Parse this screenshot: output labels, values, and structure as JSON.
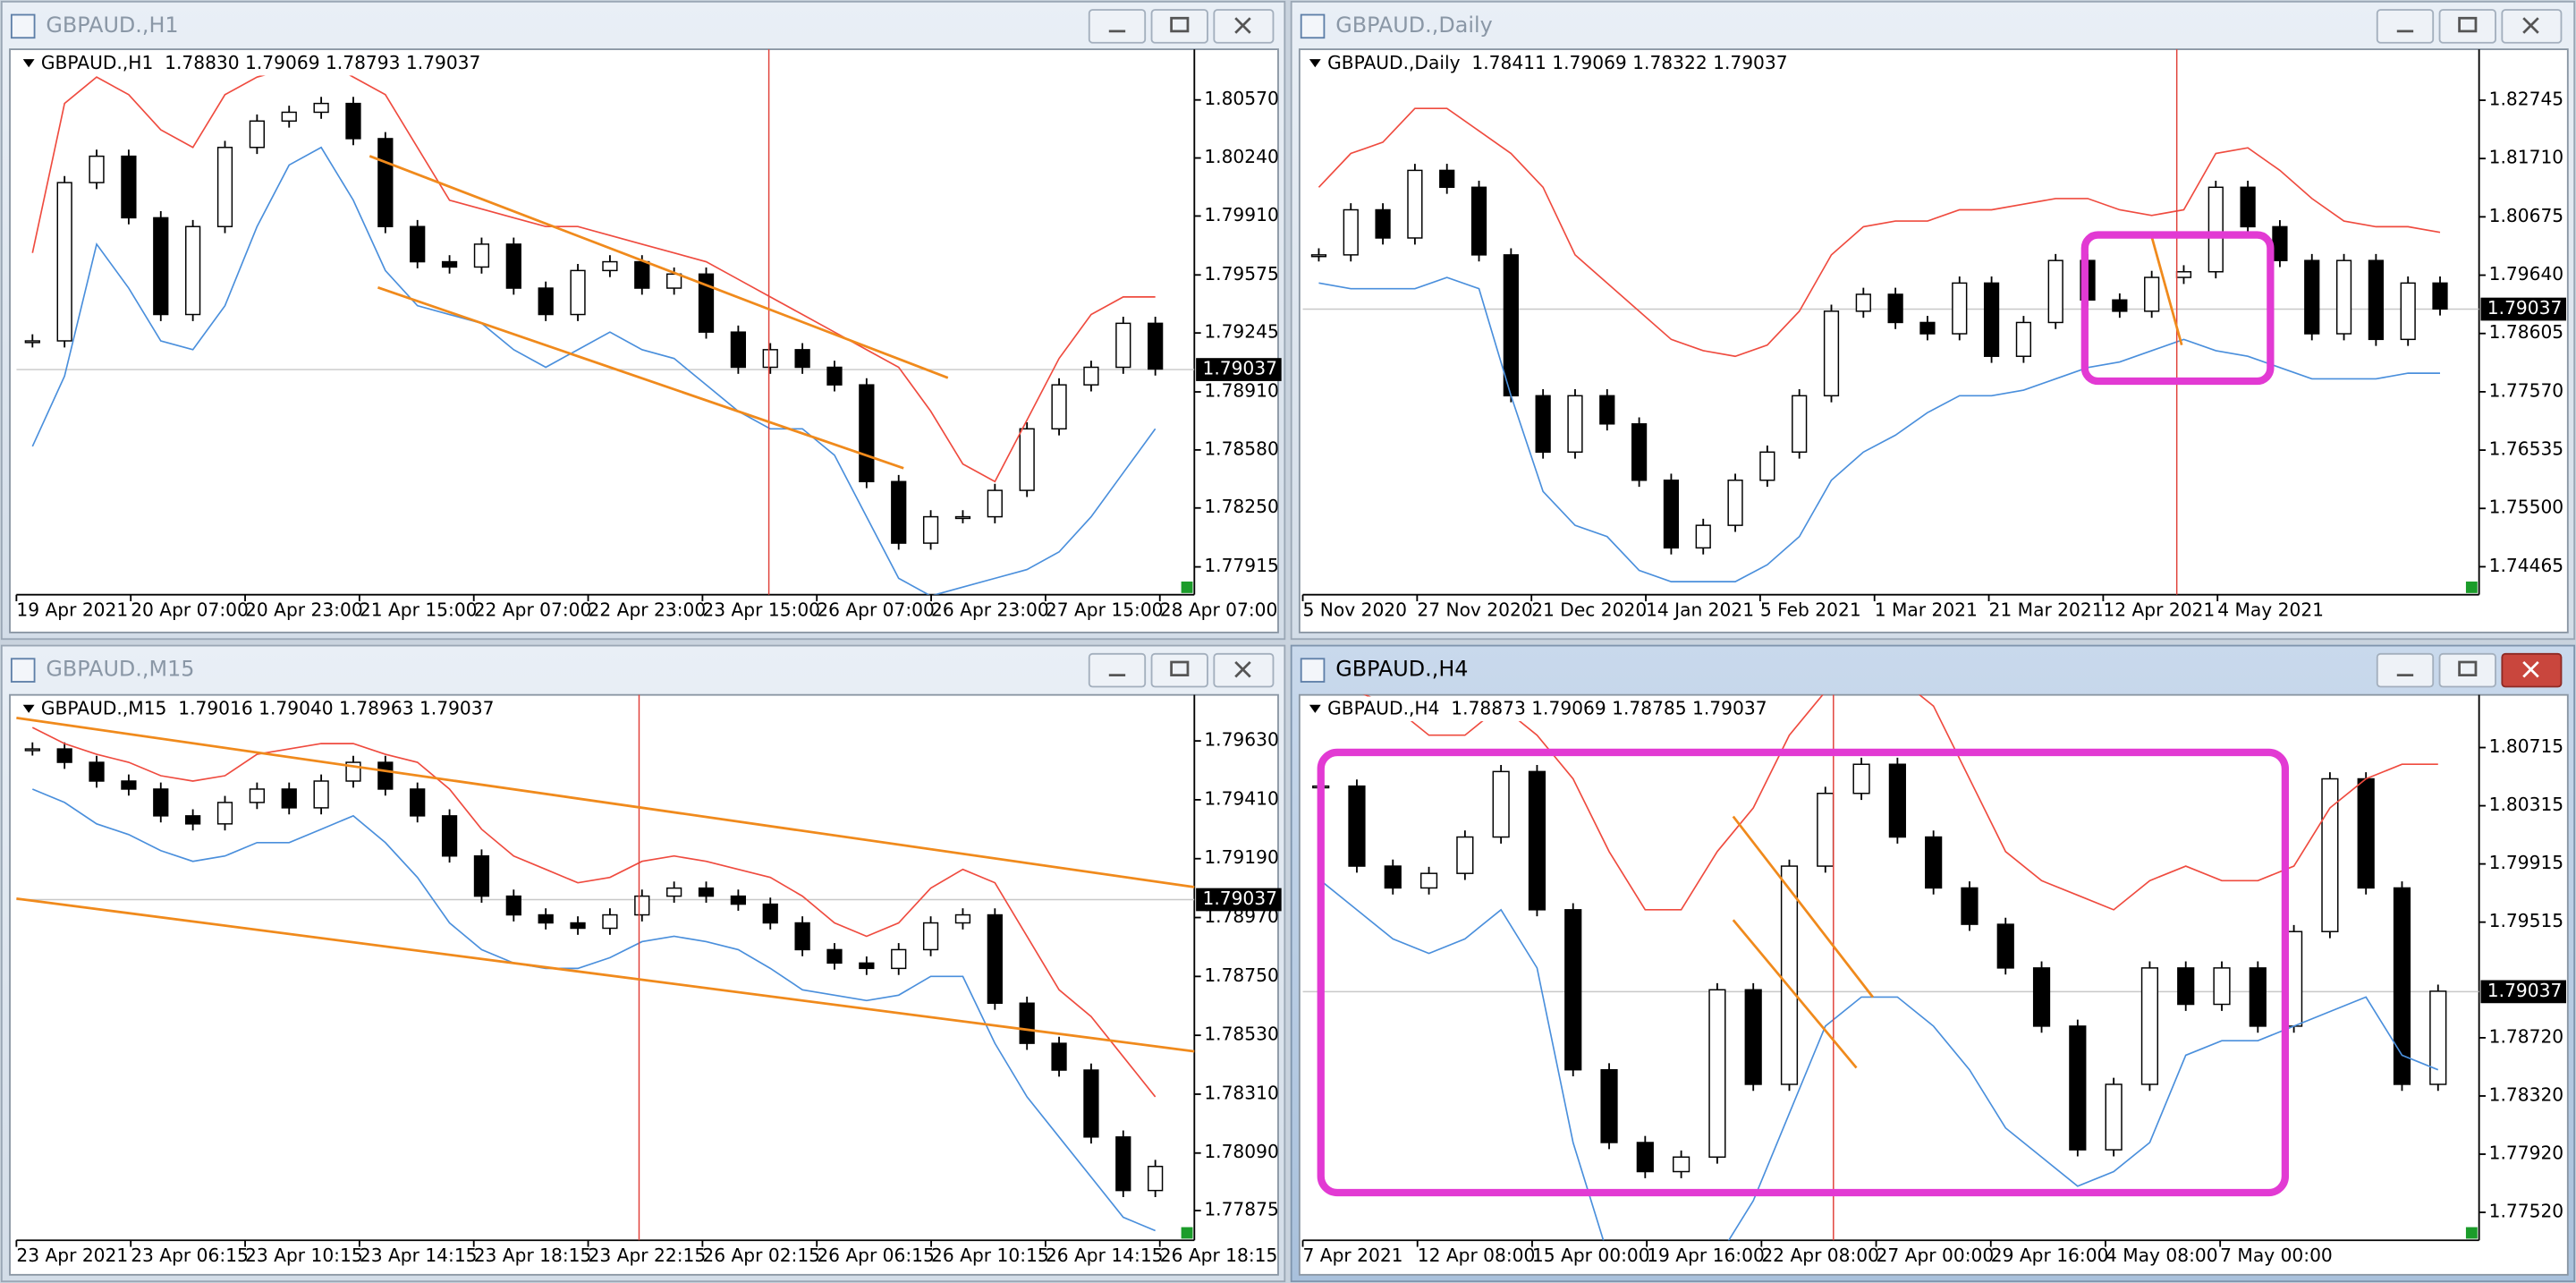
{
  "windows": [
    {
      "title": "GBPAUD.,H1",
      "header": "GBPAUD.,H1  1.78830 1.79069 1.78793 1.79037",
      "chart_data": {
        "type": "candlestick",
        "ylim": [
          1.77757,
          1.80858
        ],
        "yticks": [
          {
            "value": 1.8057,
            "label": "1.80570"
          },
          {
            "value": 1.8024,
            "label": "1.80240"
          },
          {
            "value": 1.7991,
            "label": "1.79910"
          },
          1.79575,
          1.79245,
          {
            "value": 1.7891,
            "label": "1.78910"
          },
          {
            "value": 1.7858,
            "label": "1.78580"
          },
          {
            "value": 1.7825,
            "label": "1.78250"
          },
          1.77915
        ],
        "x_labels": [
          "19 Apr 2021",
          "20 Apr 07:00",
          "20 Apr 23:00",
          "21 Apr 15:00",
          "22 Apr 07:00",
          "22 Apr 23:00",
          "23 Apr 15:00",
          "26 Apr 07:00",
          "26 Apr 23:00",
          "27 Apr 15:00",
          "28 Apr 07:00"
        ],
        "current_price": 1.79037,
        "close": [
          1.792,
          1.801,
          1.8025,
          1.799,
          1.7935,
          1.7985,
          1.803,
          1.8045,
          1.805,
          1.8055,
          1.8035,
          1.7985,
          1.7965,
          1.7962,
          1.7975,
          1.795,
          1.7935,
          1.796,
          1.7965,
          1.795,
          1.7958,
          1.7925,
          1.7905,
          1.7915,
          1.7905,
          1.7895,
          1.784,
          1.7805,
          1.782,
          1.782,
          1.7835,
          1.787,
          1.7895,
          1.7905,
          1.793,
          1.7904
        ],
        "upper": [
          1.797,
          1.8055,
          1.807,
          1.806,
          1.804,
          1.803,
          1.806,
          1.807,
          1.8075,
          1.808,
          1.807,
          1.806,
          1.803,
          1.8,
          1.7995,
          1.799,
          1.7985,
          1.7985,
          1.798,
          1.7975,
          1.797,
          1.7965,
          1.7955,
          1.7945,
          1.7935,
          1.7925,
          1.7915,
          1.7905,
          1.788,
          1.785,
          1.784,
          1.7875,
          1.791,
          1.7935,
          1.7945,
          1.7945
        ],
        "lower": [
          1.786,
          1.79,
          1.7975,
          1.795,
          1.792,
          1.7915,
          1.794,
          1.7985,
          1.802,
          1.803,
          1.8,
          1.796,
          1.794,
          1.7935,
          1.793,
          1.7915,
          1.7905,
          1.7915,
          1.7925,
          1.7915,
          1.791,
          1.7895,
          1.788,
          1.787,
          1.787,
          1.7855,
          1.782,
          1.7785,
          1.7775,
          1.778,
          1.7785,
          1.779,
          1.78,
          1.782,
          1.7845,
          1.787
        ]
      }
    },
    {
      "title": "GBPAUD.,Daily",
      "header": "GBPAUD.,Daily  1.78411 1.79069 1.78322 1.79037",
      "chart_data": {
        "type": "candlestick",
        "ylim": [
          1.73969,
          1.83649
        ],
        "yticks": [
          1.82745,
          {
            "value": 1.8171,
            "label": "1.81710"
          },
          1.80675,
          {
            "value": 1.7964,
            "label": "1.79640"
          },
          1.78605,
          {
            "value": 1.7757,
            "label": "1.77570"
          },
          1.76535,
          {
            "value": 1.755,
            "label": "1.75500"
          },
          1.74465
        ],
        "x_labels": [
          "5 Nov 2020",
          "27 Nov 2020",
          "21 Dec 2020",
          "14 Jan 2021",
          "5 Feb 2021",
          "1 Mar 2021",
          "21 Mar 2021",
          "12 Apr 2021",
          "4 May 2021"
        ],
        "current_price": 1.79037,
        "close": [
          1.8,
          1.808,
          1.803,
          1.815,
          1.812,
          1.8,
          1.775,
          1.765,
          1.775,
          1.77,
          1.76,
          1.748,
          1.752,
          1.76,
          1.765,
          1.775,
          1.79,
          1.793,
          1.788,
          1.786,
          1.795,
          1.782,
          1.788,
          1.799,
          1.792,
          1.79,
          1.796,
          1.797,
          1.812,
          1.805,
          1.799,
          1.786,
          1.799,
          1.785,
          1.795,
          1.7904
        ],
        "upper": [
          1.812,
          1.818,
          1.82,
          1.826,
          1.826,
          1.822,
          1.818,
          1.812,
          1.8,
          1.795,
          1.79,
          1.785,
          1.783,
          1.782,
          1.784,
          1.79,
          1.8,
          1.805,
          1.806,
          1.806,
          1.808,
          1.808,
          1.809,
          1.81,
          1.81,
          1.808,
          1.807,
          1.808,
          1.818,
          1.819,
          1.815,
          1.81,
          1.806,
          1.805,
          1.805,
          1.804
        ],
        "lower": [
          1.795,
          1.794,
          1.794,
          1.794,
          1.796,
          1.794,
          1.775,
          1.758,
          1.752,
          1.75,
          1.744,
          1.742,
          1.742,
          1.742,
          1.745,
          1.75,
          1.76,
          1.765,
          1.768,
          1.772,
          1.775,
          1.775,
          1.776,
          1.778,
          1.78,
          1.781,
          1.783,
          1.785,
          1.783,
          1.782,
          1.78,
          1.778,
          1.778,
          1.778,
          1.779,
          1.779
        ]
      }
    },
    {
      "title": "GBPAUD.,M15",
      "header": "GBPAUD.,M15  1.79016 1.79040 1.78963 1.79037",
      "chart_data": {
        "type": "candlestick",
        "ylim": [
          1.77764,
          1.79802
        ],
        "yticks": [
          {
            "value": 1.7963,
            "label": "1.79630"
          },
          {
            "value": 1.7941,
            "label": "1.79410"
          },
          {
            "value": 1.7919,
            "label": "1.79190"
          },
          {
            "value": 1.7897,
            "label": "1.78970"
          },
          {
            "value": 1.7875,
            "label": "1.78750"
          },
          {
            "value": 1.7853,
            "label": "1.78530"
          },
          {
            "value": 1.7831,
            "label": "1.78310"
          },
          {
            "value": 1.7809,
            "label": "1.78090"
          },
          1.77875
        ],
        "x_labels": [
          "23 Apr 2021",
          "23 Apr 06:15",
          "23 Apr 10:15",
          "23 Apr 14:15",
          "23 Apr 18:15",
          "23 Apr 22:15",
          "26 Apr 02:15",
          "26 Apr 06:15",
          "26 Apr 10:15",
          "26 Apr 14:15",
          "26 Apr 18:15"
        ],
        "current_price": 1.79037,
        "close": [
          1.796,
          1.7955,
          1.7948,
          1.7945,
          1.7935,
          1.7932,
          1.794,
          1.7945,
          1.7938,
          1.7948,
          1.7955,
          1.7945,
          1.7935,
          1.792,
          1.7905,
          1.7898,
          1.7895,
          1.7893,
          1.7898,
          1.7905,
          1.7908,
          1.7905,
          1.7902,
          1.7895,
          1.7885,
          1.788,
          1.7878,
          1.7885,
          1.7895,
          1.7898,
          1.7865,
          1.785,
          1.784,
          1.7815,
          1.7795,
          1.7804
        ],
        "upper": [
          1.7968,
          1.7962,
          1.7958,
          1.7955,
          1.795,
          1.7948,
          1.795,
          1.7958,
          1.796,
          1.7962,
          1.7962,
          1.7958,
          1.7955,
          1.7945,
          1.793,
          1.792,
          1.7915,
          1.791,
          1.7912,
          1.7918,
          1.792,
          1.7918,
          1.7915,
          1.7912,
          1.7905,
          1.7895,
          1.789,
          1.7895,
          1.7908,
          1.7915,
          1.791,
          1.789,
          1.787,
          1.786,
          1.7845,
          1.783
        ],
        "lower": [
          1.7945,
          1.794,
          1.7932,
          1.7928,
          1.7922,
          1.7918,
          1.792,
          1.7925,
          1.7925,
          1.793,
          1.7935,
          1.7925,
          1.7912,
          1.7895,
          1.7885,
          1.788,
          1.7878,
          1.7878,
          1.7882,
          1.7888,
          1.789,
          1.7888,
          1.7885,
          1.7878,
          1.787,
          1.7868,
          1.7866,
          1.7868,
          1.7875,
          1.7875,
          1.785,
          1.783,
          1.7815,
          1.78,
          1.7785,
          1.778
        ]
      }
    },
    {
      "title": "GBPAUD.,H4",
      "header": "GBPAUD.,H4  1.78873 1.79069 1.78785 1.79037",
      "chart_data": {
        "type": "candlestick",
        "ylim": [
          1.77328,
          1.81077
        ],
        "yticks": [
          1.80715,
          1.80315,
          1.79915,
          1.79515,
          {
            "value": 1.7872,
            "label": "1.78720"
          },
          {
            "value": 1.7832,
            "label": "1.78320"
          },
          {
            "value": 1.7792,
            "label": "1.77920"
          },
          {
            "value": 1.7752,
            "label": "1.77520"
          }
        ],
        "x_labels": [
          "7 Apr 2021",
          "12 Apr 08:00",
          "15 Apr 00:00",
          "19 Apr 16:00",
          "22 Apr 08:00",
          "27 Apr 00:00",
          "29 Apr 16:00",
          "4 May 08:00",
          "7 May 00:00"
        ],
        "current_price": 1.79037,
        "close": [
          1.8045,
          1.799,
          1.7975,
          1.7985,
          1.801,
          1.8055,
          1.796,
          1.785,
          1.78,
          1.778,
          1.779,
          1.7905,
          1.784,
          1.799,
          1.804,
          1.806,
          1.801,
          1.7975,
          1.795,
          1.792,
          1.788,
          1.7795,
          1.784,
          1.792,
          1.7895,
          1.792,
          1.788,
          1.7945,
          1.805,
          1.7975,
          1.784,
          1.7904
        ],
        "upper": [
          1.812,
          1.811,
          1.81,
          1.808,
          1.808,
          1.81,
          1.808,
          1.805,
          1.8,
          1.796,
          1.796,
          1.8,
          1.803,
          1.808,
          1.811,
          1.812,
          1.812,
          1.81,
          1.805,
          1.8,
          1.798,
          1.797,
          1.796,
          1.798,
          1.799,
          1.798,
          1.798,
          1.799,
          1.803,
          1.805,
          1.806,
          1.806
        ],
        "lower": [
          1.798,
          1.796,
          1.794,
          1.793,
          1.794,
          1.796,
          1.792,
          1.78,
          1.772,
          1.77,
          1.77,
          1.772,
          1.776,
          1.782,
          1.788,
          1.79,
          1.79,
          1.788,
          1.785,
          1.781,
          1.779,
          1.777,
          1.778,
          1.78,
          1.786,
          1.787,
          1.787,
          1.788,
          1.789,
          1.79,
          1.786,
          1.785
        ]
      }
    }
  ]
}
